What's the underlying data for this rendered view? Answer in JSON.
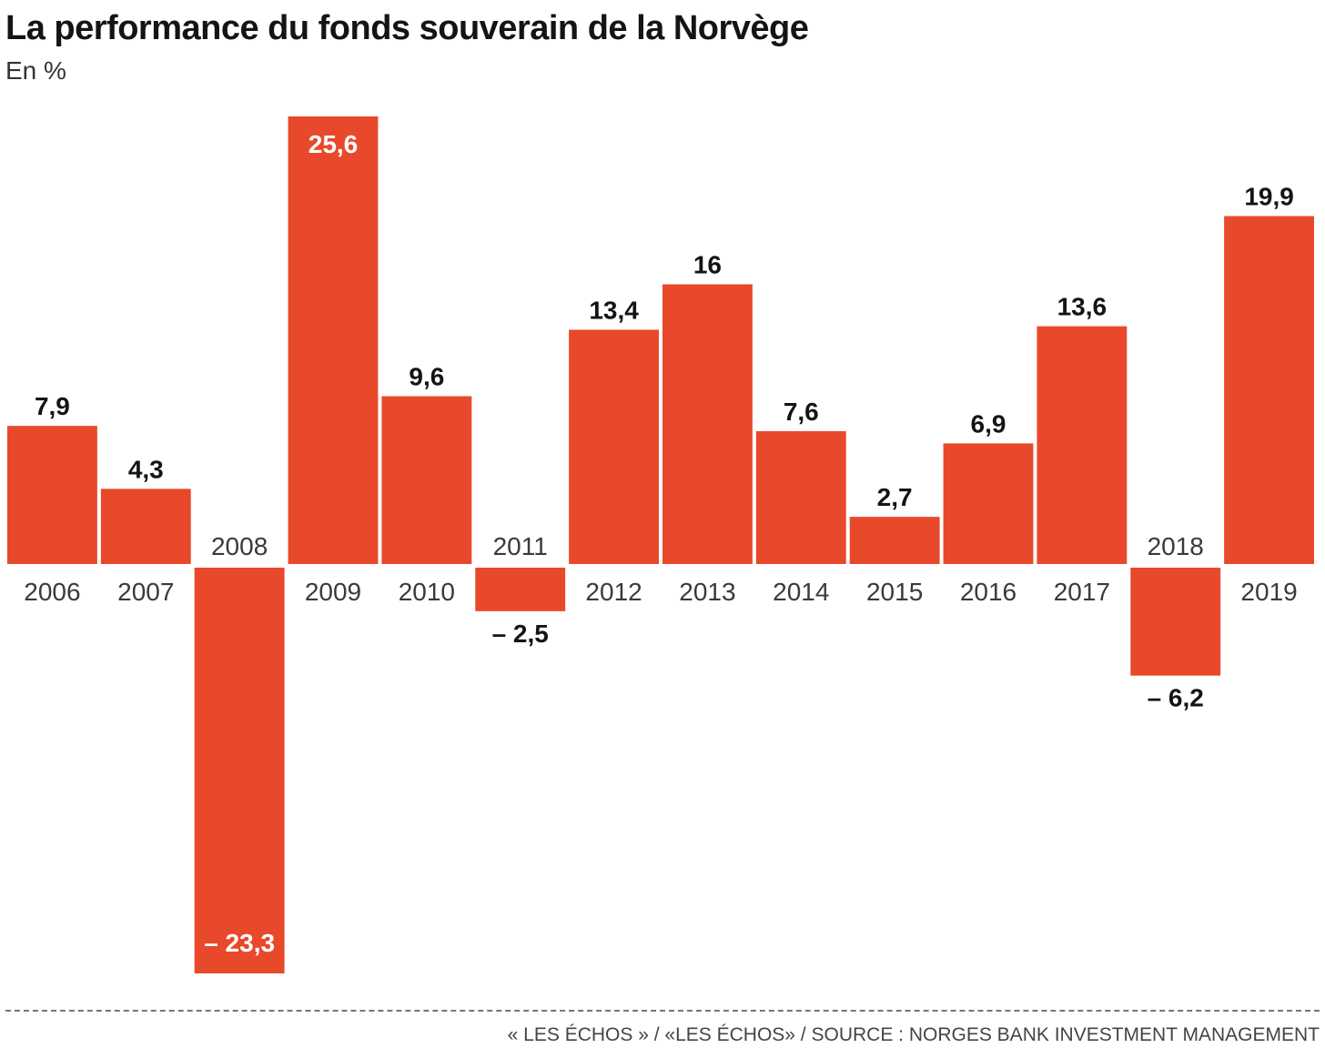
{
  "title": "La performance du fonds souverain de la Norvège",
  "subtitle": "En %",
  "source": "« LES ÉCHOS » /  «LES ÉCHOS» / SOURCE : NORGES BANK INVESTMENT MANAGEMENT",
  "colors": {
    "bar": "#E8492B",
    "label_dark": "#141414",
    "label_light": "#ffffff",
    "year": "#3a3a3a"
  },
  "chart_data": {
    "type": "bar",
    "title": "La performance du fonds souverain de la Norvège",
    "subtitle": "En %",
    "categories": [
      "2006",
      "2007",
      "2008",
      "2009",
      "2010",
      "2011",
      "2012",
      "2013",
      "2014",
      "2015",
      "2016",
      "2017",
      "2018",
      "2019"
    ],
    "values": [
      7.9,
      4.3,
      -23.3,
      25.6,
      9.6,
      -2.5,
      13.4,
      16,
      7.6,
      2.7,
      6.9,
      13.6,
      -6.2,
      19.9
    ],
    "value_labels": [
      "7,9",
      "4,3",
      "– 23,3",
      "25,6",
      "9,6",
      "– 2,5",
      "13,4",
      "16",
      "7,6",
      "2,7",
      "6,9",
      "13,6",
      "– 6,2",
      "19,9"
    ],
    "xlabel": "",
    "ylabel": "",
    "ylim": [
      -23.3,
      25.6
    ],
    "grid": false,
    "legend": "none"
  }
}
